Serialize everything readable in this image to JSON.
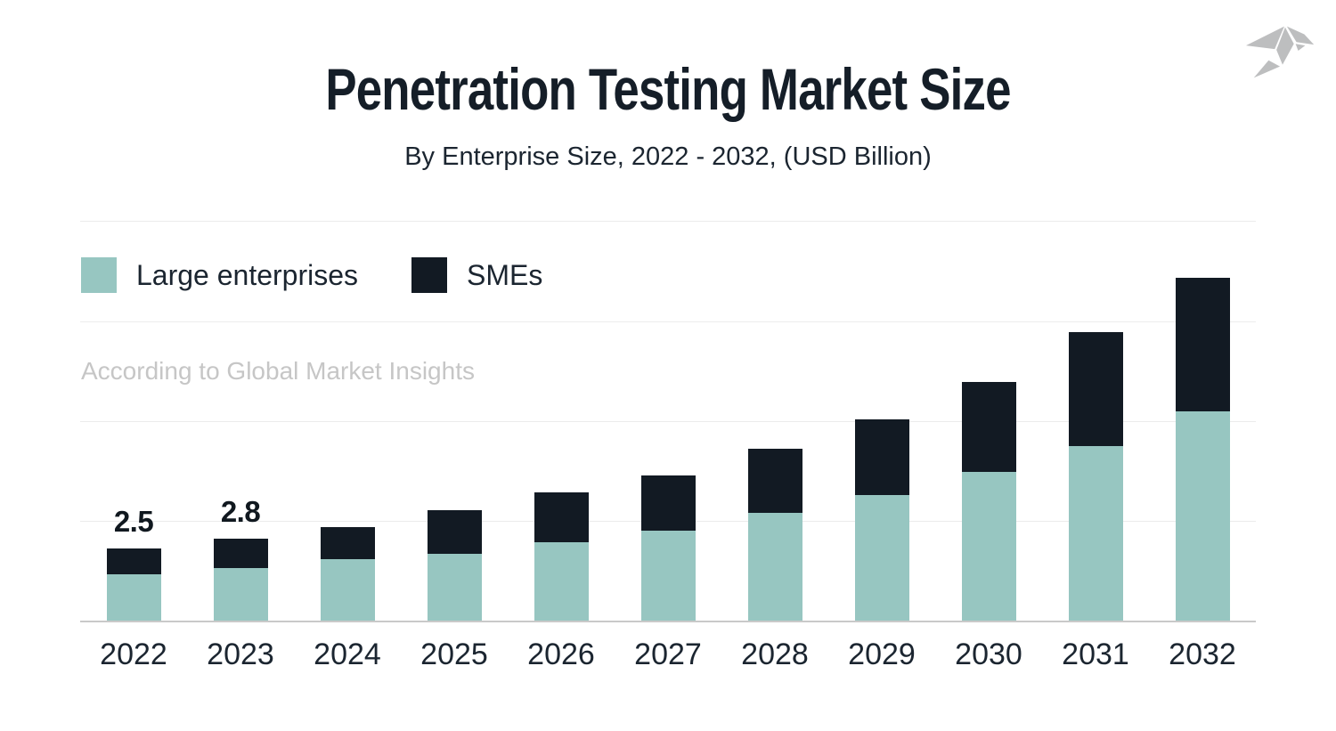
{
  "header": {
    "title": "Penetration Testing Market Size",
    "subtitle": "By Enterprise Size, 2022 - 2032, (USD Billion)"
  },
  "source_note": "According to Global Market Insights",
  "legend": [
    {
      "label": "Large enterprises",
      "color": "#97c6c1"
    },
    {
      "label": "SMEs",
      "color": "#121a23"
    }
  ],
  "logo": {
    "name": "origami-bird-logo",
    "color": "#bdbebf"
  },
  "colors": {
    "large_enterprises": "#97c6c1",
    "smes": "#121a23",
    "title_text": "#151e28",
    "body_text": "#1b2530",
    "gridline": "#ececec",
    "baseline": "#c9c9c9",
    "source_note_text": "#c6c6c6",
    "background": "#ffffff"
  },
  "chart_data": {
    "type": "bar",
    "stacked": true,
    "title": "Penetration Testing Market Size",
    "subtitle": "By Enterprise Size, 2022 - 2032, (USD Billion)",
    "unit": "USD Billion",
    "categories": [
      "2022",
      "2023",
      "2024",
      "2025",
      "2026",
      "2027",
      "2028",
      "2029",
      "2030",
      "2031",
      "2032"
    ],
    "series": [
      {
        "name": "Large enterprises",
        "color": "#97c6c1",
        "values": [
          1.6,
          1.8,
          2.1,
          2.3,
          2.7,
          3.1,
          3.7,
          4.3,
          5.1,
          6.0,
          7.2
        ]
      },
      {
        "name": "SMEs",
        "color": "#121a23",
        "values": [
          0.9,
          1.0,
          1.1,
          1.5,
          1.7,
          1.9,
          2.2,
          2.6,
          3.1,
          3.9,
          4.6
        ]
      }
    ],
    "totals": [
      2.5,
      2.8,
      3.2,
      3.8,
      4.4,
      5.0,
      5.9,
      6.9,
      8.2,
      9.9,
      11.8
    ],
    "bar_labels": [
      "2.5",
      "2.8",
      "",
      "",
      "",
      "",
      "",
      "",
      "",
      "",
      ""
    ],
    "xlabel": "",
    "ylabel": "",
    "ylim": [
      0,
      13.7
    ],
    "grid": "horizontal",
    "legend_position": "top-left"
  }
}
